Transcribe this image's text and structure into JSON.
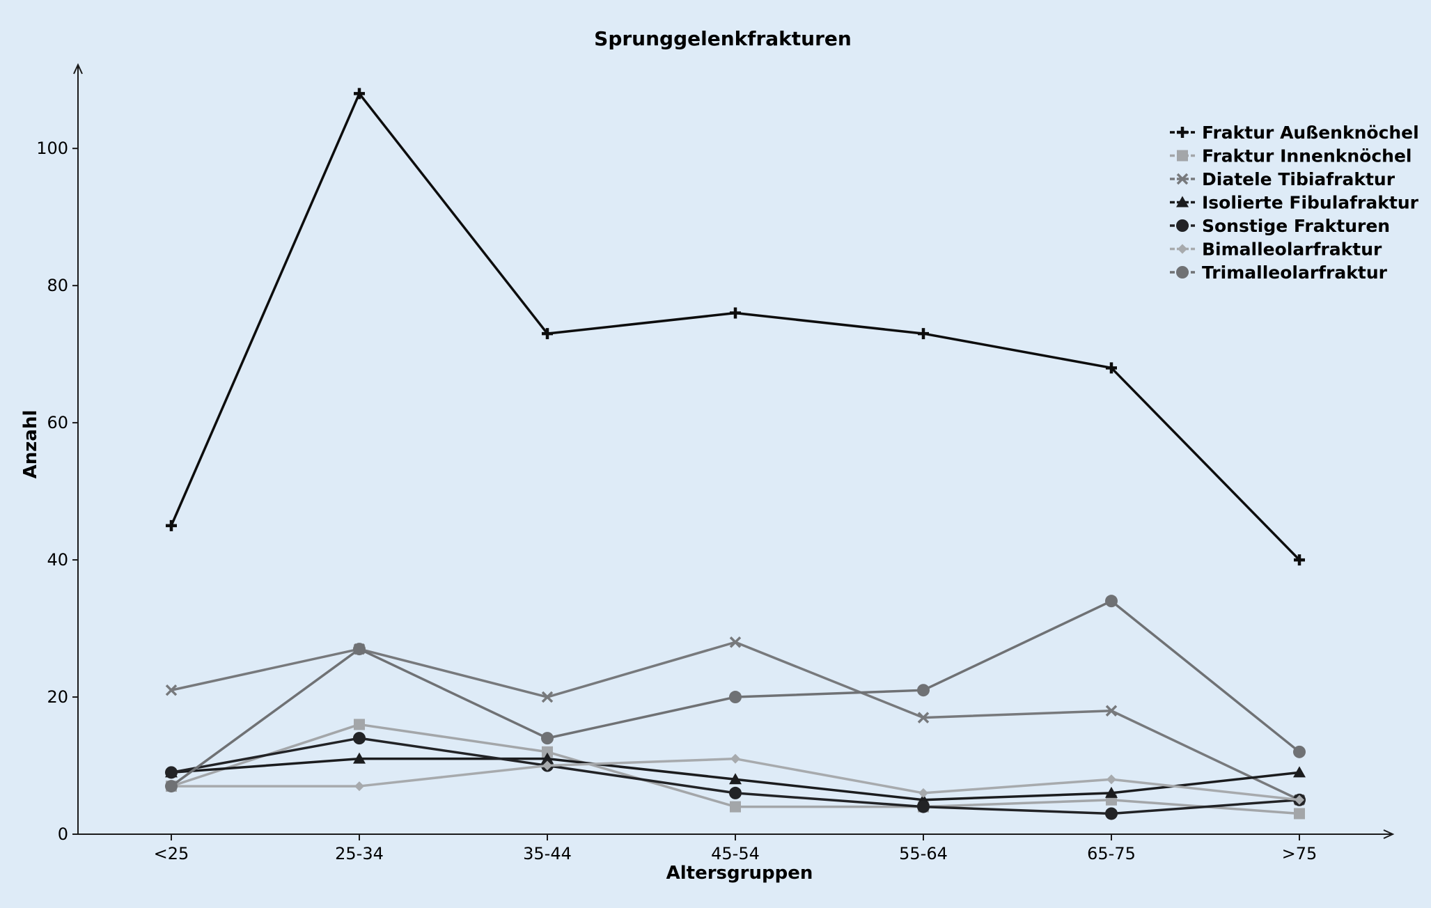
{
  "chart_data": {
    "type": "line",
    "title": "Sprunggelenkfrakturen",
    "xlabel": "Altersgruppen",
    "ylabel": "Anzahl",
    "categories": [
      "<25",
      "25-34",
      "35-44",
      "45-54",
      "55-64",
      "65-75",
      ">75"
    ],
    "ylim": [
      0,
      112
    ],
    "yticks": [
      0,
      20,
      40,
      60,
      80,
      100
    ],
    "grid": false,
    "legend_position": "top-right",
    "series": [
      {
        "name": "Fraktur Außenknöchel",
        "marker": "plus",
        "color": "#0d0d0d",
        "values": [
          45,
          108,
          73,
          76,
          73,
          68,
          40
        ]
      },
      {
        "name": "Fraktur Innenknöchel",
        "marker": "square",
        "color": "#a3a6a9",
        "values": [
          7,
          16,
          12,
          4,
          4,
          5,
          3
        ]
      },
      {
        "name": "Diatele Tibiafraktur",
        "marker": "x",
        "color": "#77797c",
        "values": [
          21,
          27,
          20,
          28,
          17,
          18,
          5
        ]
      },
      {
        "name": "Isolierte Fibulafraktur",
        "marker": "triangle",
        "color": "#1b1c1e",
        "values": [
          9,
          11,
          11,
          8,
          5,
          6,
          9
        ]
      },
      {
        "name": "Sonstige Frakturen",
        "marker": "circle",
        "color": "#222326",
        "values": [
          9,
          14,
          10,
          6,
          4,
          3,
          5
        ]
      },
      {
        "name": "Bimalleolarfraktur",
        "marker": "diamond",
        "color": "#a7aaad",
        "values": [
          7,
          7,
          10,
          11,
          6,
          8,
          5
        ]
      },
      {
        "name": "Trimalleolarfraktur",
        "marker": "circle",
        "color": "#6f7174",
        "values": [
          7,
          27,
          14,
          20,
          21,
          34,
          12
        ]
      }
    ]
  }
}
